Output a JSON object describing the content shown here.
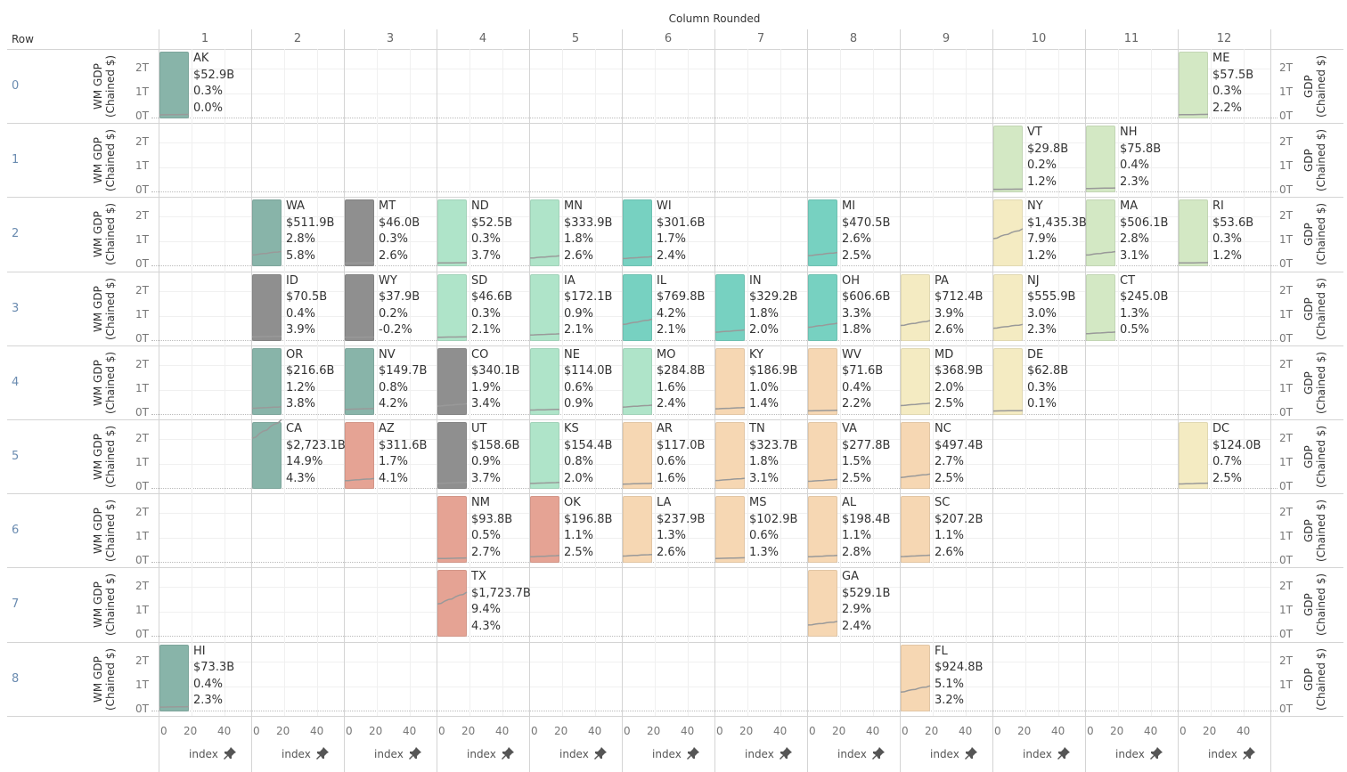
{
  "header": {
    "column_title": "Column Rounded",
    "row_label": "Row"
  },
  "columns": [
    "1",
    "2",
    "3",
    "4",
    "5",
    "6",
    "7",
    "8",
    "9",
    "10",
    "11",
    "12"
  ],
  "rows": [
    "0",
    "1",
    "2",
    "3",
    "4",
    "5",
    "6",
    "7",
    "8"
  ],
  "left_axis": {
    "title": "WM GDP (Chained $)",
    "ticks": [
      "2T",
      "1T",
      "0T"
    ]
  },
  "right_axis": {
    "title": "GDP (Chained $)",
    "ticks": [
      "2T",
      "1T",
      "0T"
    ]
  },
  "bottom_axis": {
    "ticks": [
      "0",
      "20",
      "40"
    ],
    "label": "index",
    "pin_icon": "pin-icon"
  },
  "colors": {
    "dark_teal": "#88b4a9",
    "gray": "#8f8f8f",
    "mint": "#afe4c9",
    "teal": "#77d1c1",
    "light_green": "#d3e8c4",
    "yellow": "#f4ebc2",
    "peach": "#f6d7b3",
    "salmon": "#e5a394",
    "line": "#999999"
  },
  "chart_data": {
    "type": "tile-map-sparkline",
    "title": "Column Rounded",
    "xlabel": "index",
    "ylabel": "WM GDP (Chained $)",
    "ylim": [
      0,
      2000
    ],
    "y_unit": "billions",
    "states": [
      {
        "state": "AK",
        "row": 0,
        "col": 1,
        "gdp": "$52.9B",
        "gdp_value": 52.9,
        "share": "0.3%",
        "growth": "0.0%",
        "group": "dark_teal"
      },
      {
        "state": "ME",
        "row": 0,
        "col": 12,
        "gdp": "$57.5B",
        "gdp_value": 57.5,
        "share": "0.3%",
        "growth": "2.2%",
        "group": "light_green"
      },
      {
        "state": "VT",
        "row": 1,
        "col": 10,
        "gdp": "$29.8B",
        "gdp_value": 29.8,
        "share": "0.2%",
        "growth": "1.2%",
        "group": "light_green"
      },
      {
        "state": "NH",
        "row": 1,
        "col": 11,
        "gdp": "$75.8B",
        "gdp_value": 75.8,
        "share": "0.4%",
        "growth": "2.3%",
        "group": "light_green"
      },
      {
        "state": "WA",
        "row": 2,
        "col": 2,
        "gdp": "$511.9B",
        "gdp_value": 511.9,
        "share": "2.8%",
        "growth": "5.8%",
        "group": "dark_teal"
      },
      {
        "state": "MT",
        "row": 2,
        "col": 3,
        "gdp": "$46.0B",
        "gdp_value": 46.0,
        "share": "0.3%",
        "growth": "2.6%",
        "group": "gray"
      },
      {
        "state": "ND",
        "row": 2,
        "col": 4,
        "gdp": "$52.5B",
        "gdp_value": 52.5,
        "share": "0.3%",
        "growth": "3.7%",
        "group": "mint"
      },
      {
        "state": "MN",
        "row": 2,
        "col": 5,
        "gdp": "$333.9B",
        "gdp_value": 333.9,
        "share": "1.8%",
        "growth": "2.6%",
        "group": "mint"
      },
      {
        "state": "WI",
        "row": 2,
        "col": 6,
        "gdp": "$301.6B",
        "gdp_value": 301.6,
        "share": "1.7%",
        "growth": "2.4%",
        "group": "teal"
      },
      {
        "state": "MI",
        "row": 2,
        "col": 8,
        "gdp": "$470.5B",
        "gdp_value": 470.5,
        "share": "2.6%",
        "growth": "2.5%",
        "group": "teal"
      },
      {
        "state": "NY",
        "row": 2,
        "col": 10,
        "gdp": "$1,435.3B",
        "gdp_value": 1435.3,
        "share": "7.9%",
        "growth": "1.2%",
        "group": "yellow"
      },
      {
        "state": "MA",
        "row": 2,
        "col": 11,
        "gdp": "$506.1B",
        "gdp_value": 506.1,
        "share": "2.8%",
        "growth": "3.1%",
        "group": "light_green"
      },
      {
        "state": "RI",
        "row": 2,
        "col": 12,
        "gdp": "$53.6B",
        "gdp_value": 53.6,
        "share": "0.3%",
        "growth": "1.2%",
        "group": "light_green"
      },
      {
        "state": "ID",
        "row": 3,
        "col": 2,
        "gdp": "$70.5B",
        "gdp_value": 70.5,
        "share": "0.4%",
        "growth": "3.9%",
        "group": "gray"
      },
      {
        "state": "WY",
        "row": 3,
        "col": 3,
        "gdp": "$37.9B",
        "gdp_value": 37.9,
        "share": "0.2%",
        "growth": "-0.2%",
        "group": "gray"
      },
      {
        "state": "SD",
        "row": 3,
        "col": 4,
        "gdp": "$46.6B",
        "gdp_value": 46.6,
        "share": "0.3%",
        "growth": "2.1%",
        "group": "mint"
      },
      {
        "state": "IA",
        "row": 3,
        "col": 5,
        "gdp": "$172.1B",
        "gdp_value": 172.1,
        "share": "0.9%",
        "growth": "2.1%",
        "group": "mint"
      },
      {
        "state": "IL",
        "row": 3,
        "col": 6,
        "gdp": "$769.8B",
        "gdp_value": 769.8,
        "share": "4.2%",
        "growth": "2.1%",
        "group": "teal"
      },
      {
        "state": "IN",
        "row": 3,
        "col": 7,
        "gdp": "$329.2B",
        "gdp_value": 329.2,
        "share": "1.8%",
        "growth": "2.0%",
        "group": "teal"
      },
      {
        "state": "OH",
        "row": 3,
        "col": 8,
        "gdp": "$606.6B",
        "gdp_value": 606.6,
        "share": "3.3%",
        "growth": "1.8%",
        "group": "teal"
      },
      {
        "state": "PA",
        "row": 3,
        "col": 9,
        "gdp": "$712.4B",
        "gdp_value": 712.4,
        "share": "3.9%",
        "growth": "2.6%",
        "group": "yellow"
      },
      {
        "state": "NJ",
        "row": 3,
        "col": 10,
        "gdp": "$555.9B",
        "gdp_value": 555.9,
        "share": "3.0%",
        "growth": "2.3%",
        "group": "yellow"
      },
      {
        "state": "CT",
        "row": 3,
        "col": 11,
        "gdp": "$245.0B",
        "gdp_value": 245.0,
        "share": "1.3%",
        "growth": "0.5%",
        "group": "light_green"
      },
      {
        "state": "OR",
        "row": 4,
        "col": 2,
        "gdp": "$216.6B",
        "gdp_value": 216.6,
        "share": "1.2%",
        "growth": "3.8%",
        "group": "dark_teal"
      },
      {
        "state": "NV",
        "row": 4,
        "col": 3,
        "gdp": "$149.7B",
        "gdp_value": 149.7,
        "share": "0.8%",
        "growth": "4.2%",
        "group": "dark_teal"
      },
      {
        "state": "CO",
        "row": 4,
        "col": 4,
        "gdp": "$340.1B",
        "gdp_value": 340.1,
        "share": "1.9%",
        "growth": "3.4%",
        "group": "gray"
      },
      {
        "state": "NE",
        "row": 4,
        "col": 5,
        "gdp": "$114.0B",
        "gdp_value": 114.0,
        "share": "0.6%",
        "growth": "0.9%",
        "group": "mint"
      },
      {
        "state": "MO",
        "row": 4,
        "col": 6,
        "gdp": "$284.8B",
        "gdp_value": 284.8,
        "share": "1.6%",
        "growth": "2.4%",
        "group": "mint"
      },
      {
        "state": "KY",
        "row": 4,
        "col": 7,
        "gdp": "$186.9B",
        "gdp_value": 186.9,
        "share": "1.0%",
        "growth": "1.4%",
        "group": "peach"
      },
      {
        "state": "WV",
        "row": 4,
        "col": 8,
        "gdp": "$71.6B",
        "gdp_value": 71.6,
        "share": "0.4%",
        "growth": "2.2%",
        "group": "peach"
      },
      {
        "state": "MD",
        "row": 4,
        "col": 9,
        "gdp": "$368.9B",
        "gdp_value": 368.9,
        "share": "2.0%",
        "growth": "2.5%",
        "group": "yellow"
      },
      {
        "state": "DE",
        "row": 4,
        "col": 10,
        "gdp": "$62.8B",
        "gdp_value": 62.8,
        "share": "0.3%",
        "growth": "0.1%",
        "group": "yellow"
      },
      {
        "state": "CA",
        "row": 5,
        "col": 2,
        "gdp": "$2,723.1B",
        "gdp_value": 2723.1,
        "share": "14.9%",
        "growth": "4.3%",
        "group": "dark_teal"
      },
      {
        "state": "AZ",
        "row": 5,
        "col": 3,
        "gdp": "$311.6B",
        "gdp_value": 311.6,
        "share": "1.7%",
        "growth": "4.1%",
        "group": "salmon"
      },
      {
        "state": "UT",
        "row": 5,
        "col": 4,
        "gdp": "$158.6B",
        "gdp_value": 158.6,
        "share": "0.9%",
        "growth": "3.7%",
        "group": "gray"
      },
      {
        "state": "KS",
        "row": 5,
        "col": 5,
        "gdp": "$154.4B",
        "gdp_value": 154.4,
        "share": "0.8%",
        "growth": "2.0%",
        "group": "mint"
      },
      {
        "state": "AR",
        "row": 5,
        "col": 6,
        "gdp": "$117.0B",
        "gdp_value": 117.0,
        "share": "0.6%",
        "growth": "1.6%",
        "group": "peach"
      },
      {
        "state": "TN",
        "row": 5,
        "col": 7,
        "gdp": "$323.7B",
        "gdp_value": 323.7,
        "share": "1.8%",
        "growth": "3.1%",
        "group": "peach"
      },
      {
        "state": "VA",
        "row": 5,
        "col": 8,
        "gdp": "$277.8B",
        "gdp_value": 277.8,
        "share": "1.5%",
        "growth": "2.5%",
        "group": "peach"
      },
      {
        "state": "NC",
        "row": 5,
        "col": 9,
        "gdp": "$497.4B",
        "gdp_value": 497.4,
        "share": "2.7%",
        "growth": "2.5%",
        "group": "peach"
      },
      {
        "state": "DC",
        "row": 5,
        "col": 12,
        "gdp": "$124.0B",
        "gdp_value": 124.0,
        "share": "0.7%",
        "growth": "2.5%",
        "group": "yellow"
      },
      {
        "state": "NM",
        "row": 6,
        "col": 4,
        "gdp": "$93.8B",
        "gdp_value": 93.8,
        "share": "0.5%",
        "growth": "2.7%",
        "group": "salmon"
      },
      {
        "state": "OK",
        "row": 6,
        "col": 5,
        "gdp": "$196.8B",
        "gdp_value": 196.8,
        "share": "1.1%",
        "growth": "2.5%",
        "group": "salmon"
      },
      {
        "state": "LA",
        "row": 6,
        "col": 6,
        "gdp": "$237.9B",
        "gdp_value": 237.9,
        "share": "1.3%",
        "growth": "2.6%",
        "group": "peach"
      },
      {
        "state": "MS",
        "row": 6,
        "col": 7,
        "gdp": "$102.9B",
        "gdp_value": 102.9,
        "share": "0.6%",
        "growth": "1.3%",
        "group": "peach"
      },
      {
        "state": "AL",
        "row": 6,
        "col": 8,
        "gdp": "$198.4B",
        "gdp_value": 198.4,
        "share": "1.1%",
        "growth": "2.8%",
        "group": "peach"
      },
      {
        "state": "SC",
        "row": 6,
        "col": 9,
        "gdp": "$207.2B",
        "gdp_value": 207.2,
        "share": "1.1%",
        "growth": "2.6%",
        "group": "peach"
      },
      {
        "state": "TX",
        "row": 7,
        "col": 4,
        "gdp": "$1,723.7B",
        "gdp_value": 1723.7,
        "share": "9.4%",
        "growth": "4.3%",
        "group": "salmon"
      },
      {
        "state": "GA",
        "row": 7,
        "col": 8,
        "gdp": "$529.1B",
        "gdp_value": 529.1,
        "share": "2.9%",
        "growth": "2.4%",
        "group": "peach"
      },
      {
        "state": "HI",
        "row": 8,
        "col": 1,
        "gdp": "$73.3B",
        "gdp_value": 73.3,
        "share": "0.4%",
        "growth": "2.3%",
        "group": "dark_teal"
      },
      {
        "state": "FL",
        "row": 8,
        "col": 9,
        "gdp": "$924.8B",
        "gdp_value": 924.8,
        "share": "5.1%",
        "growth": "3.2%",
        "group": "peach"
      }
    ]
  }
}
